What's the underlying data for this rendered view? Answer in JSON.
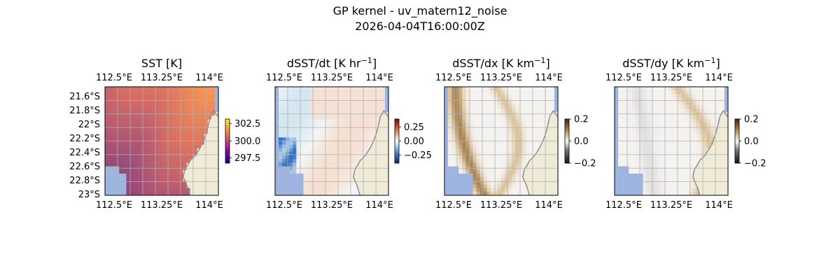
{
  "figure": {
    "title": "GP kernel - uv_matern12_noise",
    "timestamp": "2026-04-04T16:00:00Z"
  },
  "colors": {
    "land": "#efebd7",
    "ocean_mask": "#9db5e0",
    "coast": "#888888",
    "grid": "#b0b0b0"
  },
  "chart_data": [
    {
      "type": "heatmap",
      "title": "SST [K]",
      "title_base": "SST [K]",
      "title_sup": "",
      "title_end": "",
      "colormap": "plasma",
      "xlabel_ticks": [
        "112.5°E",
        "113.25°E",
        "114°E"
      ],
      "ylabel_ticks": [
        "21.6°S",
        "21.8°S",
        "22°S",
        "22.2°S",
        "22.4°S",
        "22.6°S",
        "22.8°S",
        "23°S"
      ],
      "xlim": [
        112.3,
        114.15
      ],
      "ylim": [
        -23.05,
        -21.5
      ],
      "grid": true,
      "colorbar": {
        "ticks": [
          "302.5",
          "300.0",
          "297.5"
        ],
        "range": [
          296.5,
          303.5
        ]
      },
      "show_lat_labels": true
    },
    {
      "type": "heatmap",
      "title": "dSST/dt [K hr^-1]",
      "title_base": "dSST/dt [K hr",
      "title_sup": "−1",
      "title_end": "]",
      "colormap": "diverging-blue-red",
      "xlabel_ticks": [
        "112.5°E",
        "113.25°E",
        "114°E"
      ],
      "xlim": [
        112.3,
        114.15
      ],
      "ylim": [
        -23.05,
        -21.5
      ],
      "grid": true,
      "colorbar": {
        "ticks": [
          "0.25",
          "0.00",
          "−0.25"
        ],
        "range": [
          -0.4,
          0.4
        ]
      },
      "show_lat_labels": false
    },
    {
      "type": "heatmap",
      "title": "dSST/dx [K km^-1]",
      "title_base": "dSST/dx [K km",
      "title_sup": "−1",
      "title_end": "]",
      "colormap": "diverging-brown-gray",
      "xlabel_ticks": [
        "112.5°E",
        "113.25°E",
        "114°E"
      ],
      "xlim": [
        112.3,
        114.15
      ],
      "ylim": [
        -23.05,
        -21.5
      ],
      "grid": true,
      "colorbar": {
        "ticks": [
          "0.2",
          "0.0",
          "−0.2"
        ],
        "range": [
          -0.2,
          0.2
        ]
      },
      "show_lat_labels": false
    },
    {
      "type": "heatmap",
      "title": "dSST/dy [K km^-1]",
      "title_base": "dSST/dy [K km",
      "title_sup": "−1",
      "title_end": "]",
      "colormap": "diverging-brown-gray",
      "xlabel_ticks": [
        "112.5°E",
        "113.25°E",
        "114°E"
      ],
      "xlim": [
        112.3,
        114.15
      ],
      "ylim": [
        -23.05,
        -21.5
      ],
      "grid": true,
      "colorbar": {
        "ticks": [
          "0.2",
          "0.0",
          "−0.2"
        ],
        "range": [
          -0.2,
          0.2
        ]
      },
      "show_lat_labels": false
    }
  ]
}
